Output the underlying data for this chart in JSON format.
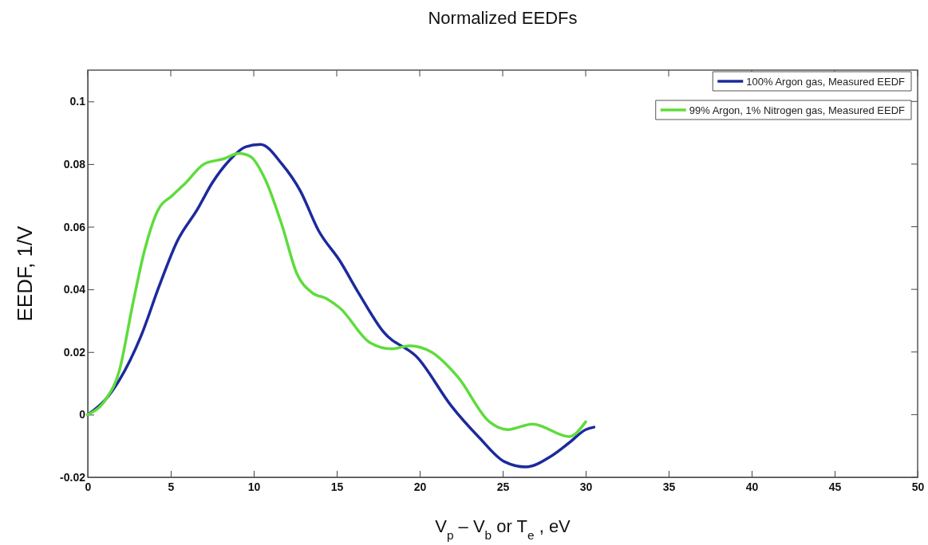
{
  "chart_data": {
    "type": "line",
    "title": "Normalized EEDFs",
    "xlabel": "V$_{p}$ – V$_{b}$ or T$_{e}$ , eV",
    "ylabel": "EEDF,  1/V",
    "xlim": [
      0,
      50
    ],
    "xticks": [
      0,
      5,
      10,
      15,
      20,
      25,
      30,
      35,
      40,
      45,
      50
    ],
    "ylim": [
      -0.02,
      0.11
    ],
    "yticks": [
      -0.02,
      0,
      0.02,
      0.04,
      0.06,
      0.08,
      0.1
    ],
    "grid": false,
    "legend": "top right",
    "line_style": "solid",
    "marker": "none",
    "series": [
      {
        "name": "100% Argon gas, Measured EEDF",
        "color": "#1c2a9c",
        "x": [
          0,
          1.1,
          1.9,
          3.2,
          4.3,
          5.4,
          6.6,
          7.5,
          8.5,
          9.5,
          10.4,
          11.7,
          12.8,
          13.9,
          15.2,
          16.3,
          17.8,
          19.9,
          21.9,
          23.6,
          25.1,
          26.4,
          27.9,
          29.0,
          30.0,
          30.5
        ],
        "values": [
          0,
          0.005,
          0.011,
          0.025,
          0.041,
          0.0555,
          0.0655,
          0.074,
          0.081,
          0.0855,
          0.0863,
          0.08,
          0.0715,
          0.0588,
          0.049,
          0.039,
          0.0265,
          0.018,
          0.0028,
          -0.0074,
          -0.015,
          -0.0167,
          -0.0133,
          -0.009,
          -0.0048,
          -0.004
        ]
      },
      {
        "name": "99% Argon, 1% Nitrogen gas, Measured EEDF",
        "color": "#5edc3c",
        "x": [
          0,
          1.1,
          1.9,
          2.7,
          3.4,
          4.2,
          5.1,
          5.9,
          7.0,
          8.2,
          9.1,
          9.8,
          10.7,
          11.7,
          12.6,
          13.5,
          14.4,
          15.2,
          17.0,
          18.3,
          19.4,
          20.7,
          22.3,
          24.2,
          25.3,
          26.8,
          29.0,
          30.0
        ],
        "values": [
          0,
          0.005,
          0.014,
          0.035,
          0.052,
          0.065,
          0.07,
          0.074,
          0.08,
          0.0817,
          0.0834,
          0.0824,
          0.075,
          0.0605,
          0.045,
          0.039,
          0.037,
          0.034,
          0.023,
          0.021,
          0.022,
          0.02,
          0.012,
          -0.0023,
          -0.0048,
          -0.003,
          -0.007,
          -0.0023
        ]
      }
    ]
  }
}
